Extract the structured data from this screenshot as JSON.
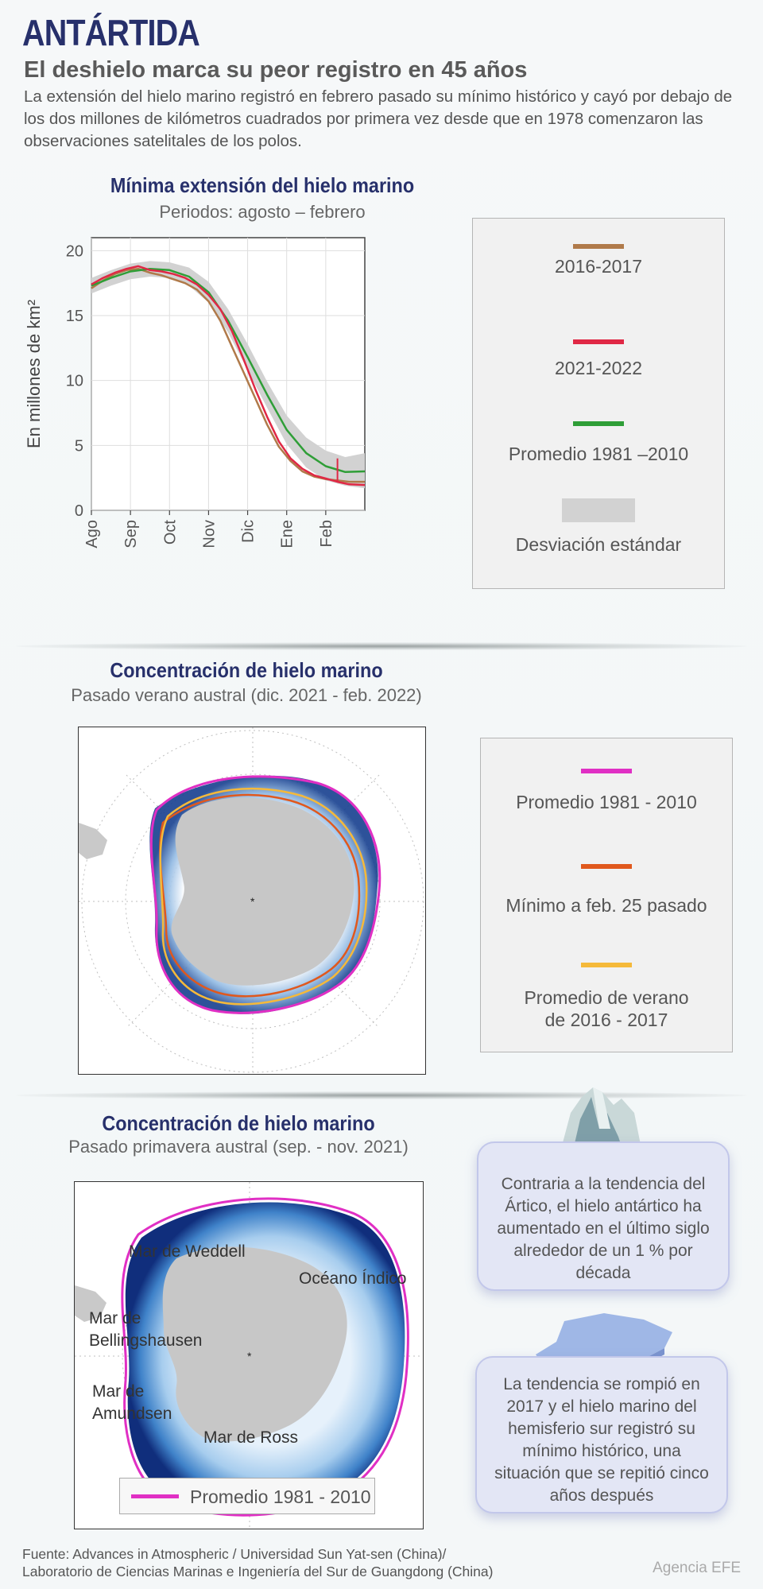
{
  "header": {
    "title": "ANTÁRTIDA",
    "subtitle": "El deshielo marca su peor registro en 45 años",
    "intro": "La extensión del hielo marino registró en febrero pasado su mínimo histórico y cayó por debajo de los dos millones de kilómetros cuadrados por primera vez desde que en 1978 comenzaron las observaciones satelitales de los polos."
  },
  "section1": {
    "title": "Mínima extensión del hielo marino",
    "subtitle": "Periodos: agosto – febrero",
    "legend": [
      {
        "label": "2016-2017",
        "color": "#b07a4a"
      },
      {
        "label": "2021-2022",
        "color": "#e02845"
      },
      {
        "label": "Promedio 1981 –2010",
        "color": "#2f9e37"
      },
      {
        "label": "Desviación estándar",
        "color": "#d2d2d2"
      }
    ]
  },
  "chart_data": {
    "type": "line",
    "title": "",
    "xlabel": "",
    "ylabel": "En millones de km²",
    "x_ticks": [
      "Ago",
      "Sep",
      "Oct",
      "Nov",
      "Dic",
      "Ene",
      "Feb"
    ],
    "ylim": [
      0,
      21
    ],
    "y_ticks": [
      0,
      5,
      10,
      15,
      20
    ],
    "grid": true,
    "series": [
      {
        "name": "Promedio 1981 –2010",
        "color": "#2f9e37",
        "x": [
          0,
          0.5,
          1,
          1.5,
          2,
          2.5,
          3,
          3.5,
          4,
          4.5,
          5,
          5.5,
          6,
          6.5,
          7
        ],
        "values": [
          17.3,
          17.9,
          18.4,
          18.6,
          18.5,
          18.0,
          16.8,
          14.6,
          11.8,
          8.9,
          6.2,
          4.4,
          3.4,
          2.95,
          3.0
        ]
      },
      {
        "name": "Desviación estándar (superior)",
        "color": "#d2d2d2",
        "x": [
          0,
          0.5,
          1,
          1.5,
          2,
          2.5,
          3,
          3.5,
          4,
          4.5,
          5,
          5.5,
          6,
          6.5,
          7
        ],
        "values": [
          17.9,
          18.5,
          19.0,
          19.2,
          19.1,
          18.7,
          17.6,
          15.5,
          12.8,
          9.9,
          7.3,
          5.6,
          4.6,
          4.1,
          4.4
        ]
      },
      {
        "name": "Desviación estándar (inferior)",
        "color": "#d2d2d2",
        "x": [
          0,
          0.5,
          1,
          1.5,
          2,
          2.5,
          3,
          3.5,
          4,
          4.5,
          5,
          5.5,
          6,
          6.5,
          7
        ],
        "values": [
          16.7,
          17.3,
          17.8,
          18.0,
          17.9,
          17.3,
          16.0,
          13.7,
          10.8,
          7.9,
          5.1,
          3.3,
          2.3,
          1.9,
          1.7
        ]
      },
      {
        "name": "2021-2022",
        "color": "#e02845",
        "x": [
          0,
          0.3,
          0.6,
          0.9,
          1.2,
          1.5,
          1.8,
          2.1,
          2.4,
          2.7,
          3.0,
          3.3,
          3.6,
          3.9,
          4.2,
          4.5,
          4.8,
          5.1,
          5.4,
          5.7,
          6.0,
          6.3,
          6.6,
          7.0
        ],
        "values": [
          17.4,
          17.9,
          18.3,
          18.6,
          18.8,
          18.5,
          18.4,
          18.2,
          17.9,
          17.4,
          16.6,
          15.5,
          13.8,
          11.6,
          9.3,
          7.2,
          5.3,
          4.0,
          3.2,
          2.7,
          2.45,
          2.2,
          2.0,
          1.95
        ]
      },
      {
        "name": "2016-2017",
        "color": "#b07a4a",
        "x": [
          0,
          0.3,
          0.6,
          0.9,
          1.2,
          1.5,
          1.8,
          2.1,
          2.4,
          2.7,
          3.0,
          3.3,
          3.6,
          3.9,
          4.2,
          4.5,
          4.8,
          5.1,
          5.4,
          5.7,
          6.0,
          6.3,
          6.6,
          7.0
        ],
        "values": [
          17.1,
          17.7,
          18.2,
          18.5,
          18.6,
          18.3,
          18.1,
          17.8,
          17.5,
          17.0,
          16.1,
          14.6,
          12.6,
          10.6,
          8.6,
          6.6,
          4.9,
          3.8,
          3.0,
          2.6,
          2.4,
          2.3,
          2.2,
          2.2
        ]
      }
    ]
  },
  "section2": {
    "title": "Concentración de hielo marino",
    "subtitle": "Pasado verano austral (dic. 2021 - feb. 2022)",
    "legend": [
      {
        "label": "Promedio 1981 - 2010",
        "color": "#e02fc4"
      },
      {
        "label": "Mínimo a feb. 25 pasado",
        "color": "#e0581d"
      },
      {
        "label": "Promedio de verano de 2016 - 2017",
        "color": "#f5b93a"
      }
    ]
  },
  "section3": {
    "title": "Concentración de hielo marino",
    "subtitle": "Pasado primavera austral (sep. - nov. 2021)",
    "map_labels": {
      "weddell": "Mar de Weddell",
      "indico": "Océano Índico",
      "bellingshausen_1": "Mar de",
      "bellingshausen_2": "Bellingshausen",
      "amundsen_1": "Mar de",
      "amundsen_2": "Amundsen",
      "ross": "Mar de Ross"
    },
    "map_legend": {
      "label": "Promedio 1981 - 2010",
      "color": "#e02fc4"
    },
    "info_1": "Contraria a la tendencia del Ártico, el hielo antártico ha aumentado en el último siglo alrededor de un 1 % por década",
    "info_2": "La tendencia se rompió en 2017 y el hielo marino del hemisferio sur registró su mínimo histórico, una situación que se repitió cinco años después"
  },
  "footer": {
    "source_1": "Fuente: Advances in Atmospheric / Universidad Sun Yat-sen (China)/",
    "source_2": "Laboratorio de Ciencias Marinas e Ingeniería del Sur de Guangdong (China)",
    "agency": "Agencia EFE"
  }
}
